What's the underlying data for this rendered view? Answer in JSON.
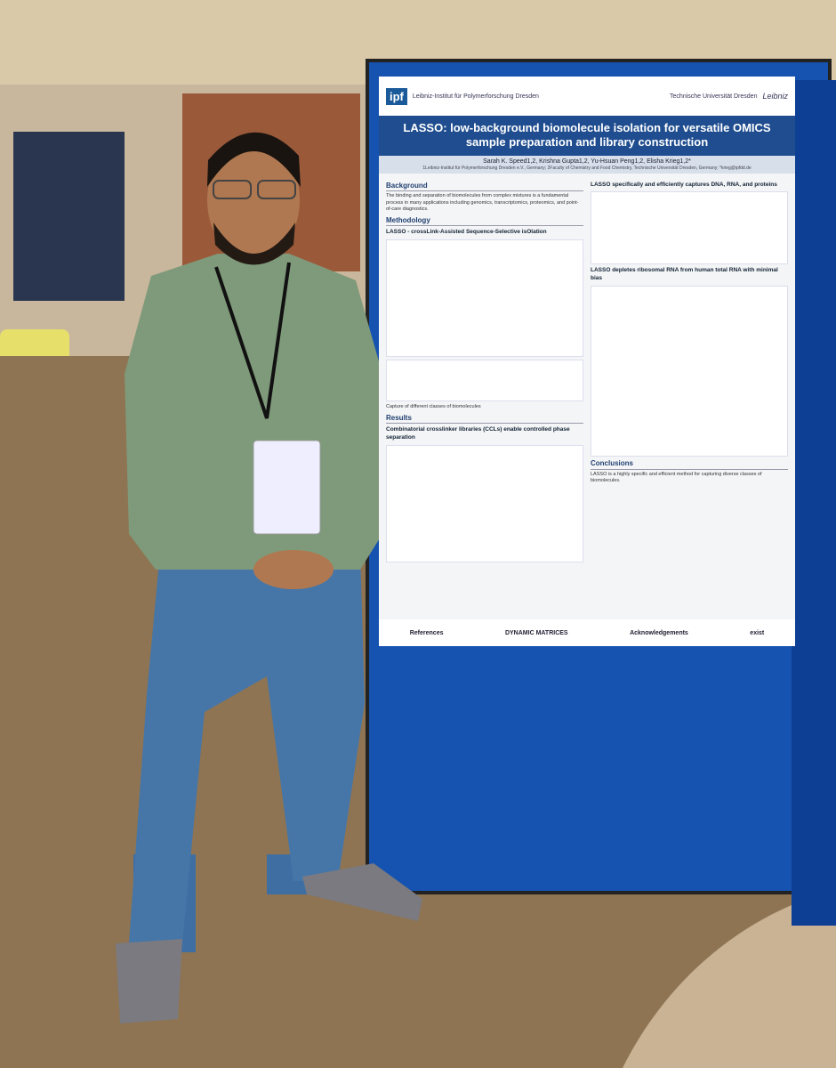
{
  "poster": {
    "header": {
      "logo": "ipf",
      "institute": "Leibniz-Institut für Polymerforschung Dresden",
      "university": "Technische Universität Dresden",
      "partner": "Leibniz"
    },
    "title": "LASSO: low-background biomolecule isolation for versatile OMICS sample preparation and library construction",
    "authors": "Sarah K. Speed1,2, Krishna Gupta1,2, Yu-Hsuan Peng1,2, Elisha Krieg1,2*",
    "affiliations": "1Leibniz-Institut für Polymerforschung Dresden e.V., Germany; 2Faculty of Chemistry and Food Chemistry, Technische Universität Dresden, Germany; *krieg@ipfdd.de",
    "left": {
      "background_heading": "Background",
      "background_text": "The binding and separation of biomolecules from complex mixtures is a fundamental process in many applications including genomics, transcriptomics, proteomics, and point-of-care diagnostics.",
      "methodology_heading": "Methodology",
      "method_subheading": "LASSO - crossLink-Assisted Sequence-Selective isOlation",
      "method_caption": "Capture of different classes of biomolecules",
      "results_heading": "Results",
      "result_1": "Combinatorial crosslinker libraries (CCLs) enable controlled phase separation"
    },
    "right": {
      "result_2": "LASSO specifically and efficiently captures DNA, RNA, and proteins",
      "result_3": "LASSO depletes ribosomal RNA from human total RNA with minimal bias",
      "conclusions_heading": "Conclusions",
      "conclusions_text": "LASSO is a highly specific and efficient method for capturing diverse classes of biomolecules."
    },
    "footer": {
      "references": "References",
      "partner": "DYNAMIC MATRICES",
      "acknowledgements": "Acknowledgements",
      "funder": "exist"
    }
  }
}
